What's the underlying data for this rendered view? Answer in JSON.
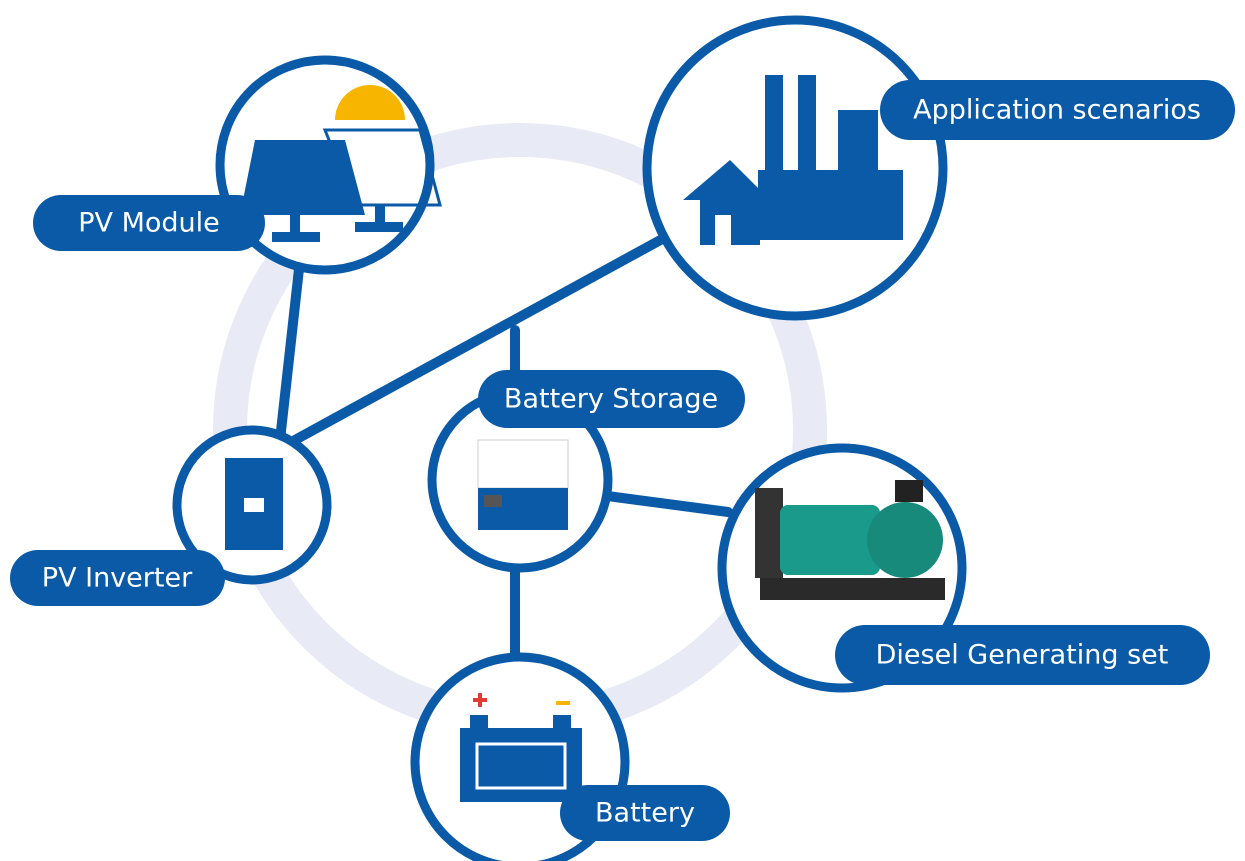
{
  "nodes": [
    {
      "label": "PV Module"
    },
    {
      "label": "Application scenarios"
    },
    {
      "label": "PV Inverter"
    },
    {
      "label": "Battery Storage"
    },
    {
      "label": "Diesel Generating set"
    },
    {
      "label": "Battery"
    }
  ]
}
